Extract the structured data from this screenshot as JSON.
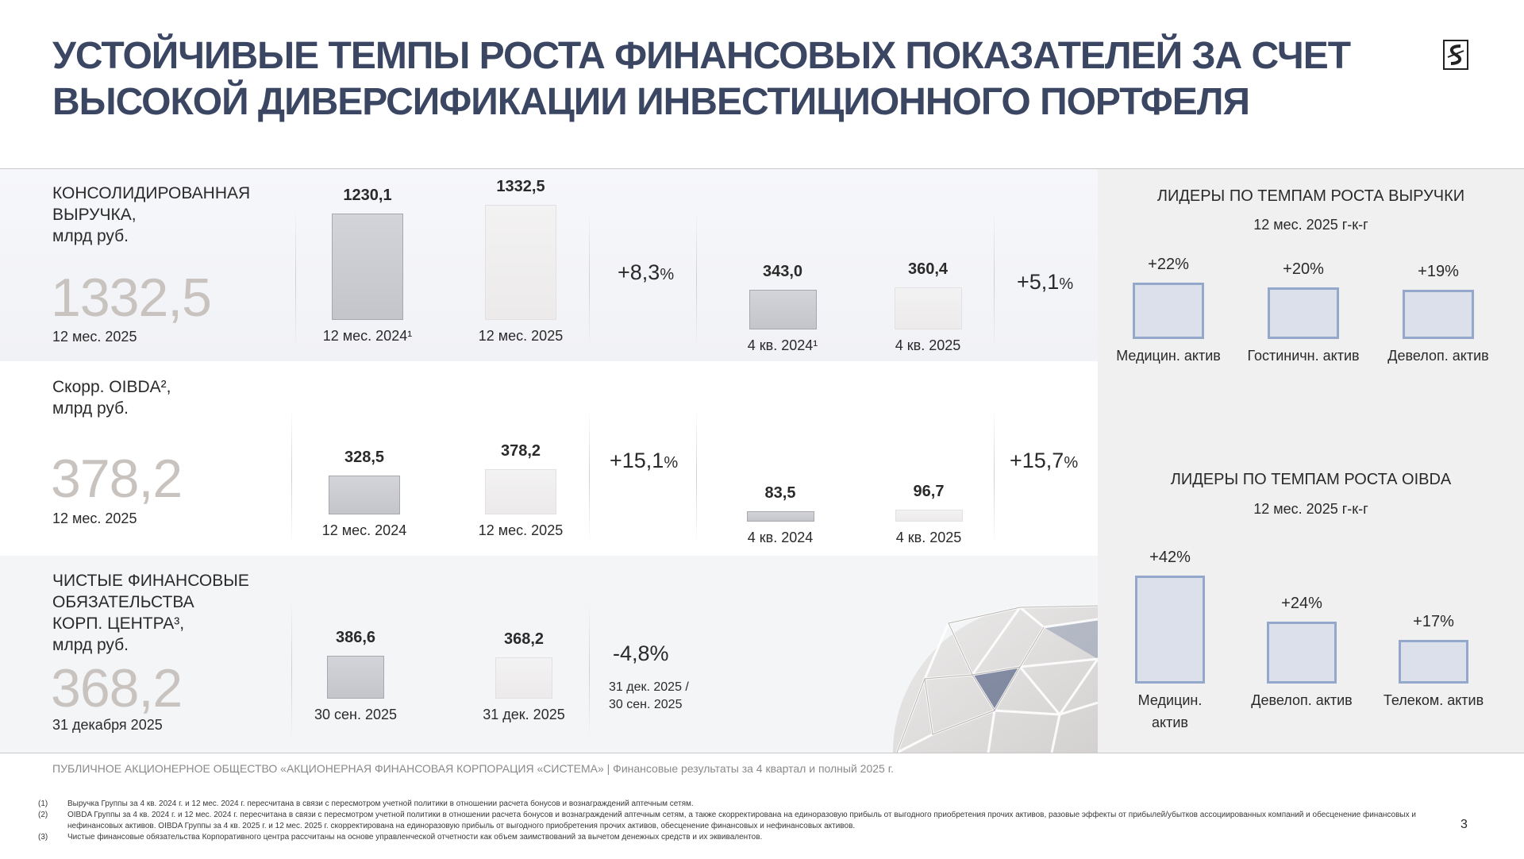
{
  "header": {
    "title_line1": "УСТОЙЧИВЫЕ ТЕМПЫ РОСТА ФИНАНСОВЫХ ПОКАЗАТЕЛЕЙ ЗА СЧЕТ",
    "title_line2": "ВЫСОКОЙ ДИВЕРСИФИКАЦИИ ИНВЕСТИЦИОННОГО ПОРТФЕЛЯ",
    "logo_icon": "sistema-logo-icon"
  },
  "metrics": [
    {
      "label_lines": [
        "КОНСОЛИДИРОВАННАЯ",
        "ВЫРУЧКА,",
        "млрд руб."
      ],
      "big_value": "1332,5",
      "big_period": "12 мес. 2025"
    },
    {
      "label_lines": [
        "Скорр. OIBDA²,",
        "млрд руб."
      ],
      "big_value": "378,2",
      "big_period": "12 мес. 2025"
    },
    {
      "label_lines": [
        "ЧИСТЫЕ ФИНАНСОВЫЕ",
        "ОБЯЗАТЕЛЬСТВА",
        "КОРП. ЦЕНТРА³,",
        "млрд руб."
      ],
      "big_value": "368,2",
      "big_period": "31 декабря 2025"
    }
  ],
  "chart_data": [
    {
      "type": "bar",
      "categories": [
        "12 мес. 2024¹",
        "12 мес. 2025"
      ],
      "values": [
        1230.1,
        1332.5
      ],
      "value_labels": [
        "1230,1",
        "1332,5"
      ],
      "change": "+8,3",
      "change_unit": "%"
    },
    {
      "type": "bar",
      "categories": [
        "4 кв. 2024¹",
        "4 кв. 2025"
      ],
      "values": [
        343.0,
        360.4
      ],
      "value_labels": [
        "343,0",
        "360,4"
      ],
      "change": "+5,1",
      "change_unit": "%"
    },
    {
      "type": "bar",
      "categories": [
        "12 мес. 2024",
        "12 мес. 2025"
      ],
      "values": [
        328.5,
        378.2
      ],
      "value_labels": [
        "328,5",
        "378,2"
      ],
      "change": "+15,1",
      "change_unit": "%"
    },
    {
      "type": "bar",
      "categories": [
        "4 кв. 2024",
        "4 кв. 2025"
      ],
      "values": [
        83.5,
        96.7
      ],
      "value_labels": [
        "83,5",
        "96,7"
      ],
      "change": "+15,7",
      "change_unit": "%"
    },
    {
      "type": "bar",
      "categories": [
        "30 сен. 2025",
        "31 дек. 2025"
      ],
      "values": [
        386.6,
        368.2
      ],
      "value_labels": [
        "386,6",
        "368,2"
      ],
      "change": "-4,8%",
      "change_note_lines": [
        "31 дек. 2025 /",
        "30 сен. 2025"
      ]
    },
    {
      "type": "bar",
      "title": "ЛИДЕРЫ ПО ТЕМПАМ РОСТА ВЫРУЧКИ",
      "subtitle": "12 мес. 2025 г-к-г",
      "categories": [
        "Медицин. актив",
        "Гостиничн. актив",
        "Девелоп. актив"
      ],
      "values": [
        22,
        20,
        19
      ],
      "value_labels": [
        "+22%",
        "+20%",
        "+19%"
      ]
    },
    {
      "type": "bar",
      "title": "ЛИДЕРЫ ПО ТЕМПАМ РОСТА OIBDA",
      "subtitle": "12 мес. 2025 г-к-г",
      "categories": [
        "Медицин. актив",
        "Девелоп. актив",
        "Телеком. актив"
      ],
      "values": [
        42,
        24,
        17
      ],
      "value_labels": [
        "+42%",
        "+24%",
        "+17%"
      ]
    }
  ],
  "footer": {
    "company": "ПУБЛИЧНОЕ АКЦИОНЕРНОЕ ОБЩЕСТВО «АКЦИОНЕРНАЯ ФИНАНСОВАЯ КОРПОРАЦИЯ «СИСТЕМА» | Финансовые результаты за 4 квартал и полный 2025 г.",
    "page_number": "3",
    "notes": [
      {
        "num": "(1)",
        "text": "Выручка Группы за 4 кв. 2024 г. и 12 мес. 2024 г. пересчитана в связи с пересмотром учетной политики в отношении расчета бонусов и вознаграждений аптечным сетям."
      },
      {
        "num": "(2)",
        "text": "OIBDA Группы за 4 кв. 2024 г. и 12 мес. 2024 г. пересчитана в связи с пересмотром учетной политики в отношении расчета бонусов и вознаграждений аптечным сетям, а также скорректирована на единоразовую прибыль от выгодного приобретения прочих активов, разовые эффекты от прибылей/убытков ассоциированных компаний и обесценение финансовых и нефинансовых активов. OIBDA Группы за 4 кв. 2025 г. и 12 мес. 2025 г. скорректирована на единоразовую прибыль от выгодного приобретения прочих активов, обесценение финансовых и нефинансовых активов."
      },
      {
        "num": "(3)",
        "text": "Чистые финансовые обязательства Корпоративного центра рассчитаны на основе управленческой отчетности как объем заимствований за вычетом денежных средств и их эквивалентов."
      }
    ]
  }
}
